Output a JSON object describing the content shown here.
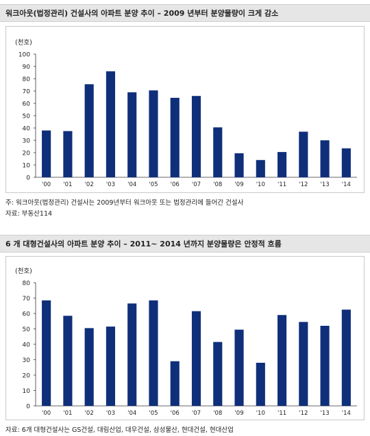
{
  "chart1": {
    "heading": "워크아웃(법정관리) 건설사의 아파트 분양 추이 – 2009 년부터 분양물량이 크게 감소",
    "footnote": "주: 워크아웃(법정관리) 건설사는 2009년부터 워크아웃 또는 법정관리에 들어간 건설사",
    "source": "자료: 부동산114"
  },
  "chart2": {
    "heading": "6 개 대형건설사의 아파트 분양 추이 – 2011~ 2014 년까지 분양물량은 안정적 흐름",
    "source": "자료: 6개 대형건설사는 GS건설, 대림산업, 대우건설, 삼성물산, 현대건설, 현대산업"
  },
  "chart_data": [
    {
      "type": "bar",
      "unit_label": "(천호)",
      "categories": [
        "'00",
        "'01",
        "'02",
        "'03",
        "'04",
        "'05",
        "'06",
        "'07",
        "'08",
        "'09",
        "'10",
        "'11",
        "'12",
        "'13",
        "'14"
      ],
      "values": [
        38,
        37.5,
        75.5,
        86,
        69,
        70.5,
        64.5,
        66,
        40.5,
        19.5,
        14,
        20.5,
        37,
        30,
        23.5
      ],
      "ylim": [
        0,
        100
      ],
      "yticks": [
        0,
        10,
        20,
        30,
        40,
        50,
        60,
        70,
        80,
        90,
        100
      ],
      "color": "#0f2f7a"
    },
    {
      "type": "bar",
      "unit_label": "(천호)",
      "categories": [
        "'00",
        "'01",
        "'02",
        "'03",
        "'04",
        "'05",
        "'06",
        "'07",
        "'08",
        "'09",
        "'10",
        "'11",
        "'12",
        "'13",
        "'14"
      ],
      "values": [
        68.5,
        58.5,
        50.5,
        51.5,
        66.5,
        68.5,
        29,
        61.5,
        41.5,
        49.5,
        28,
        59,
        54.5,
        52,
        62.5
      ],
      "ylim": [
        0,
        80
      ],
      "yticks": [
        0,
        10,
        20,
        30,
        40,
        50,
        60,
        70,
        80
      ],
      "color": "#0f2f7a"
    }
  ]
}
